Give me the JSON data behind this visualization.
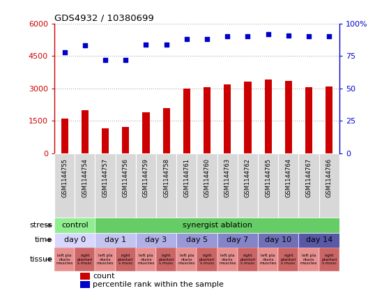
{
  "title": "GDS4932 / 10380699",
  "samples": [
    "GSM1144755",
    "GSM1144754",
    "GSM1144757",
    "GSM1144756",
    "GSM1144759",
    "GSM1144758",
    "GSM1144761",
    "GSM1144760",
    "GSM1144763",
    "GSM1144762",
    "GSM1144765",
    "GSM1144764",
    "GSM1144767",
    "GSM1144766"
  ],
  "counts": [
    1600,
    2000,
    1150,
    1200,
    1900,
    2100,
    3000,
    3050,
    3200,
    3300,
    3400,
    3350,
    3050,
    3100
  ],
  "percentiles": [
    78,
    83,
    72,
    72,
    84,
    84,
    88,
    88,
    90,
    90,
    92,
    91,
    90,
    90
  ],
  "ylim_left": [
    0,
    6000
  ],
  "ylim_right": [
    0,
    100
  ],
  "yticks_left": [
    0,
    1500,
    3000,
    4500,
    6000
  ],
  "yticks_right": [
    0,
    25,
    50,
    75,
    100
  ],
  "bar_color": "#cc0000",
  "dot_color": "#0000cc",
  "bg_color": "#ffffff",
  "grid_color": "#aaaaaa",
  "n_samples": 14,
  "stress_blocks": [
    {
      "label": "control",
      "start": 0,
      "end": 2,
      "color": "#90ee90"
    },
    {
      "label": "synergist ablation",
      "start": 2,
      "end": 14,
      "color": "#66cc66"
    }
  ],
  "time_blocks": [
    {
      "label": "day 0",
      "start": 0,
      "end": 2,
      "color": "#d8d8ff"
    },
    {
      "label": "day 1",
      "start": 2,
      "end": 4,
      "color": "#c4c4f0"
    },
    {
      "label": "day 3",
      "start": 4,
      "end": 6,
      "color": "#b0b0e8"
    },
    {
      "label": "day 5",
      "start": 6,
      "end": 8,
      "color": "#9898d8"
    },
    {
      "label": "day 7",
      "start": 8,
      "end": 10,
      "color": "#8484c8"
    },
    {
      "label": "day 10",
      "start": 10,
      "end": 12,
      "color": "#7070b8"
    },
    {
      "label": "day 14",
      "start": 12,
      "end": 14,
      "color": "#5858a8"
    }
  ],
  "tissue_colors": [
    "#e89090",
    "#cc6666"
  ],
  "tissue_labels": [
    "left pla\nntaris\nmuscles",
    "right\nplantari\ns musc"
  ],
  "row_labels": [
    "stress",
    "time",
    "tissue"
  ],
  "arrow_color": "#555555"
}
